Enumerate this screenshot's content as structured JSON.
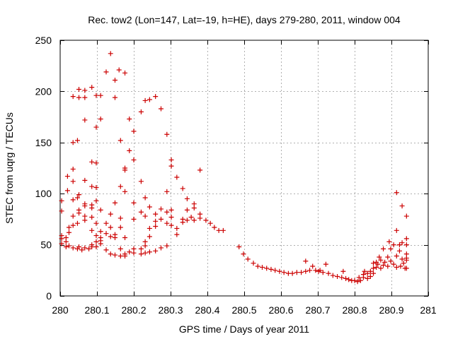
{
  "chart_data": {
    "type": "scatter",
    "title": "Rec. tow2 (Lon=147, Lat=-19, h=HE), days 279-280, 2011, window 004",
    "xlabel": "GPS time / Days of year 2011",
    "ylabel": "STEC from uqrg / TECUs",
    "xlim": [
      280,
      281
    ],
    "ylim": [
      0,
      250
    ],
    "xticks": [
      280,
      280.1,
      280.2,
      280.3,
      280.4,
      280.5,
      280.6,
      280.7,
      280.8,
      280.9,
      281
    ],
    "xtick_labels": [
      "280",
      "280.1",
      "280.2",
      "280.3",
      "280.4",
      "280.5",
      "280.6",
      "280.7",
      "280.8",
      "280.9",
      "281"
    ],
    "yticks": [
      0,
      50,
      100,
      150,
      200,
      250
    ],
    "ytick_labels": [
      "0",
      "50",
      "100",
      "150",
      "200",
      "250"
    ],
    "grid": true,
    "marker": "+",
    "color": "#cc0000",
    "points": [
      [
        280.004,
        93
      ],
      [
        280.004,
        83
      ],
      [
        280.004,
        59
      ],
      [
        280.004,
        56
      ],
      [
        280.004,
        51
      ],
      [
        280.016,
        57
      ],
      [
        280.016,
        53
      ],
      [
        280.016,
        48
      ],
      [
        280.02,
        117
      ],
      [
        280.02,
        103
      ],
      [
        280.024,
        67
      ],
      [
        280.024,
        62
      ],
      [
        280.024,
        49
      ],
      [
        280.035,
        195
      ],
      [
        280.035,
        150
      ],
      [
        280.035,
        124
      ],
      [
        280.035,
        112
      ],
      [
        280.035,
        94
      ],
      [
        280.035,
        78
      ],
      [
        280.035,
        69
      ],
      [
        280.035,
        47
      ],
      [
        280.047,
        152
      ],
      [
        280.047,
        96
      ],
      [
        280.047,
        71
      ],
      [
        280.047,
        46
      ],
      [
        280.051,
        202
      ],
      [
        280.051,
        194
      ],
      [
        280.051,
        99
      ],
      [
        280.051,
        81
      ],
      [
        280.051,
        84
      ],
      [
        280.051,
        48
      ],
      [
        280.059,
        45
      ],
      [
        280.067,
        201
      ],
      [
        280.067,
        194
      ],
      [
        280.067,
        172
      ],
      [
        280.067,
        113
      ],
      [
        280.067,
        90
      ],
      [
        280.067,
        88
      ],
      [
        280.067,
        78
      ],
      [
        280.067,
        74
      ],
      [
        280.067,
        47
      ],
      [
        280.078,
        46
      ],
      [
        280.086,
        204
      ],
      [
        280.086,
        131
      ],
      [
        280.086,
        107
      ],
      [
        280.086,
        89
      ],
      [
        280.086,
        86
      ],
      [
        280.086,
        77
      ],
      [
        280.086,
        64
      ],
      [
        280.086,
        50
      ],
      [
        280.086,
        48
      ],
      [
        280.098,
        196
      ],
      [
        280.098,
        165
      ],
      [
        280.098,
        130
      ],
      [
        280.098,
        106
      ],
      [
        280.098,
        93
      ],
      [
        280.098,
        71
      ],
      [
        280.098,
        59
      ],
      [
        280.098,
        53
      ],
      [
        280.098,
        48
      ],
      [
        280.11,
        196
      ],
      [
        280.11,
        173
      ],
      [
        280.11,
        84
      ],
      [
        280.11,
        63
      ],
      [
        280.11,
        57
      ],
      [
        280.11,
        54
      ],
      [
        280.11,
        51
      ],
      [
        280.125,
        219
      ],
      [
        280.125,
        71
      ],
      [
        280.125,
        61
      ],
      [
        280.125,
        45
      ],
      [
        280.137,
        237
      ],
      [
        280.137,
        80
      ],
      [
        280.137,
        67
      ],
      [
        280.137,
        58
      ],
      [
        280.137,
        41
      ],
      [
        280.149,
        211
      ],
      [
        280.149,
        194
      ],
      [
        280.149,
        91
      ],
      [
        280.149,
        60
      ],
      [
        280.149,
        57
      ],
      [
        280.149,
        40
      ],
      [
        280.16,
        221
      ],
      [
        280.164,
        152
      ],
      [
        280.164,
        107
      ],
      [
        280.164,
        76
      ],
      [
        280.164,
        67
      ],
      [
        280.164,
        46
      ],
      [
        280.164,
        39
      ],
      [
        280.176,
        218
      ],
      [
        280.176,
        125
      ],
      [
        280.176,
        123
      ],
      [
        280.176,
        102
      ],
      [
        280.176,
        57
      ],
      [
        280.176,
        41
      ],
      [
        280.176,
        39
      ],
      [
        280.188,
        173
      ],
      [
        280.188,
        142
      ],
      [
        280.188,
        43
      ],
      [
        280.2,
        161
      ],
      [
        280.2,
        133
      ],
      [
        280.2,
        91
      ],
      [
        280.2,
        75
      ],
      [
        280.2,
        46
      ],
      [
        280.2,
        42
      ],
      [
        280.22,
        180
      ],
      [
        280.22,
        112
      ],
      [
        280.22,
        82
      ],
      [
        280.22,
        46
      ],
      [
        280.22,
        41
      ],
      [
        280.231,
        191
      ],
      [
        280.231,
        96
      ],
      [
        280.231,
        78
      ],
      [
        280.231,
        53
      ],
      [
        280.231,
        49
      ],
      [
        280.231,
        42
      ],
      [
        280.243,
        192
      ],
      [
        280.243,
        87
      ],
      [
        280.243,
        66
      ],
      [
        280.243,
        58
      ],
      [
        280.243,
        43
      ],
      [
        280.259,
        195
      ],
      [
        280.259,
        80
      ],
      [
        280.259,
        73
      ],
      [
        280.259,
        68
      ],
      [
        280.259,
        44
      ],
      [
        280.274,
        183
      ],
      [
        280.274,
        85
      ],
      [
        280.274,
        75
      ],
      [
        280.274,
        47
      ],
      [
        280.29,
        158
      ],
      [
        280.29,
        102
      ],
      [
        280.29,
        82
      ],
      [
        280.29,
        71
      ],
      [
        280.29,
        49
      ],
      [
        280.302,
        133
      ],
      [
        280.302,
        127
      ],
      [
        280.302,
        84
      ],
      [
        280.302,
        77
      ],
      [
        280.302,
        69
      ],
      [
        280.317,
        116
      ],
      [
        280.317,
        66
      ],
      [
        280.317,
        60
      ],
      [
        280.333,
        105
      ],
      [
        280.333,
        75
      ],
      [
        280.333,
        72
      ],
      [
        280.345,
        95
      ],
      [
        280.345,
        84
      ],
      [
        280.345,
        74
      ],
      [
        280.356,
        77
      ],
      [
        280.364,
        90
      ],
      [
        280.364,
        86
      ],
      [
        280.364,
        74
      ],
      [
        280.38,
        123
      ],
      [
        280.38,
        80
      ],
      [
        280.38,
        76
      ],
      [
        280.396,
        74
      ],
      [
        280.408,
        71
      ],
      [
        280.419,
        67
      ],
      [
        280.431,
        64
      ],
      [
        280.443,
        64
      ],
      [
        280.486,
        48
      ],
      [
        280.498,
        41
      ],
      [
        280.51,
        36
      ],
      [
        280.525,
        32
      ],
      [
        280.537,
        29
      ],
      [
        280.549,
        28
      ],
      [
        280.561,
        27
      ],
      [
        280.573,
        26
      ],
      [
        280.584,
        25
      ],
      [
        280.596,
        24
      ],
      [
        280.608,
        23
      ],
      [
        280.62,
        22
      ],
      [
        280.631,
        22
      ],
      [
        280.643,
        23
      ],
      [
        280.655,
        23
      ],
      [
        280.667,
        24
      ],
      [
        280.667,
        34
      ],
      [
        280.678,
        25
      ],
      [
        280.686,
        29
      ],
      [
        280.694,
        25
      ],
      [
        280.702,
        24
      ],
      [
        280.706,
        25
      ],
      [
        280.714,
        23
      ],
      [
        280.722,
        31
      ],
      [
        280.729,
        22
      ],
      [
        280.741,
        20
      ],
      [
        280.753,
        19
      ],
      [
        280.765,
        18
      ],
      [
        280.769,
        24
      ],
      [
        280.776,
        17
      ],
      [
        280.784,
        16
      ],
      [
        280.792,
        15
      ],
      [
        280.8,
        15
      ],
      [
        280.808,
        14
      ],
      [
        280.812,
        18
      ],
      [
        280.816,
        15
      ],
      [
        280.824,
        18
      ],
      [
        280.824,
        21
      ],
      [
        280.827,
        24
      ],
      [
        280.835,
        17
      ],
      [
        280.835,
        22
      ],
      [
        280.843,
        19
      ],
      [
        280.843,
        24
      ],
      [
        280.851,
        22
      ],
      [
        280.851,
        27
      ],
      [
        280.851,
        32
      ],
      [
        280.859,
        28
      ],
      [
        280.859,
        33
      ],
      [
        280.863,
        31
      ],
      [
        280.867,
        38
      ],
      [
        280.871,
        27
      ],
      [
        280.871,
        35
      ],
      [
        280.878,
        30
      ],
      [
        280.878,
        46
      ],
      [
        280.882,
        33
      ],
      [
        280.89,
        29
      ],
      [
        280.89,
        38
      ],
      [
        280.894,
        53
      ],
      [
        280.898,
        34
      ],
      [
        280.898,
        46
      ],
      [
        280.906,
        31
      ],
      [
        280.906,
        50
      ],
      [
        280.914,
        101
      ],
      [
        280.914,
        64
      ],
      [
        280.914,
        39
      ],
      [
        280.914,
        28
      ],
      [
        280.922,
        44
      ],
      [
        280.922,
        50
      ],
      [
        280.925,
        29
      ],
      [
        280.929,
        88
      ],
      [
        280.929,
        52
      ],
      [
        280.929,
        36
      ],
      [
        280.933,
        32
      ],
      [
        280.937,
        27
      ],
      [
        280.941,
        78
      ],
      [
        280.941,
        56
      ],
      [
        280.941,
        50
      ],
      [
        280.941,
        41
      ],
      [
        280.941,
        37
      ],
      [
        280.941,
        35
      ],
      [
        280.941,
        27
      ]
    ]
  }
}
